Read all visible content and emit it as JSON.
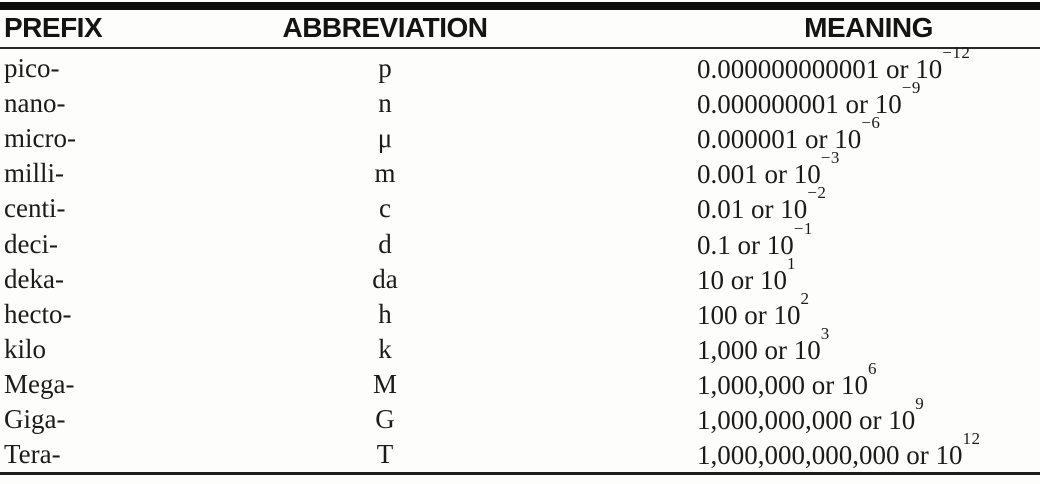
{
  "table": {
    "headers": {
      "prefix": "PREFIX",
      "abbreviation": "ABBREVIATION",
      "meaning": "MEANING"
    },
    "connector": "or",
    "base": "10",
    "rows": [
      {
        "prefix": "pico-",
        "abbreviation": "p",
        "number": "0.000000000001",
        "exponent": "−12"
      },
      {
        "prefix": "nano-",
        "abbreviation": "n",
        "number": "0.000000001",
        "exponent": "−9"
      },
      {
        "prefix": "micro-",
        "abbreviation": "μ",
        "number": "0.000001",
        "exponent": "−6"
      },
      {
        "prefix": "milli-",
        "abbreviation": "m",
        "number": "0.001",
        "exponent": "−3"
      },
      {
        "prefix": "centi-",
        "abbreviation": "c",
        "number": "0.01",
        "exponent": "−2"
      },
      {
        "prefix": "deci-",
        "abbreviation": "d",
        "number": "0.1",
        "exponent": "−1"
      },
      {
        "prefix": "deka-",
        "abbreviation": "da",
        "number": "10",
        "exponent": "1"
      },
      {
        "prefix": "hecto-",
        "abbreviation": "h",
        "number": "100",
        "exponent": "2"
      },
      {
        "prefix": "kilo",
        "abbreviation": "k",
        "number": "1,000",
        "exponent": "3"
      },
      {
        "prefix": "Mega-",
        "abbreviation": "M",
        "number": "1,000,000",
        "exponent": "6"
      },
      {
        "prefix": "Giga-",
        "abbreviation": "G",
        "number": "1,000,000,000",
        "exponent": "9"
      },
      {
        "prefix": "Tera-",
        "abbreviation": "T",
        "number": "1,000,000,000,000",
        "exponent": "12"
      }
    ]
  },
  "colors": {
    "text": "#1b1b1b",
    "rule": "#111111",
    "background": "#fdfdfc"
  }
}
